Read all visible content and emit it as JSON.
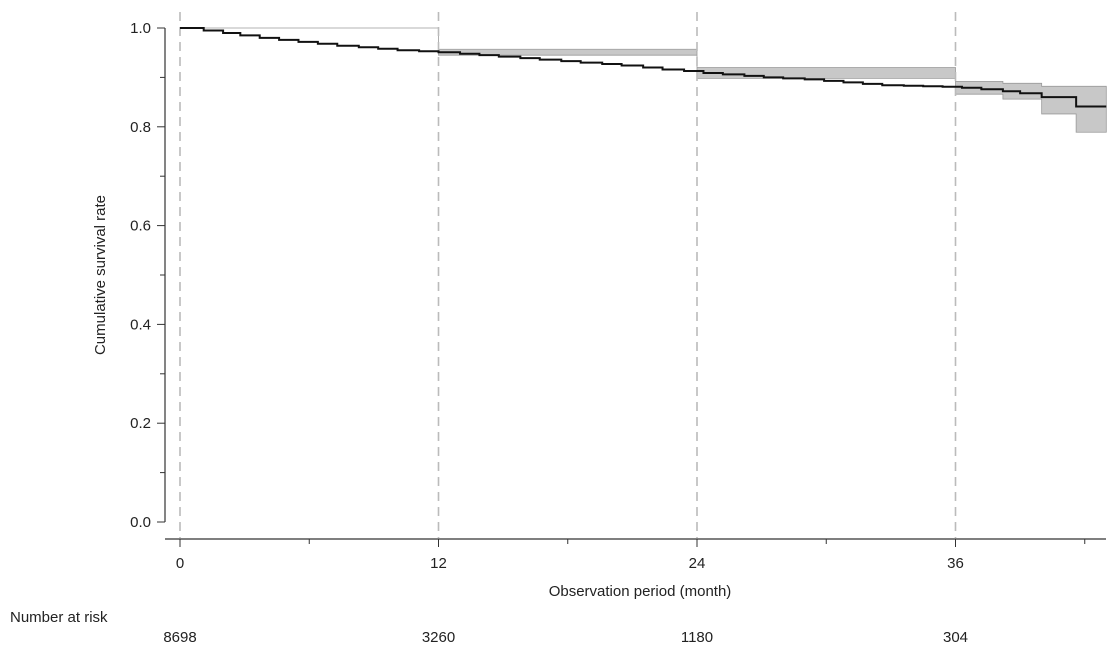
{
  "chart_data": {
    "type": "line",
    "subtype": "kaplan-meier survival curve with confidence band",
    "title": "",
    "xlabel": "Observation period (month)",
    "ylabel": "Cumulative survival rate",
    "xlim": [
      0,
      43
    ],
    "ylim": [
      0,
      1.0
    ],
    "xticks": [
      0,
      12,
      24,
      36
    ],
    "xtick_labels": [
      "0",
      "12",
      "24",
      "36"
    ],
    "yticks": [
      0.0,
      0.2,
      0.4,
      0.6,
      0.8,
      1.0
    ],
    "ytick_labels": [
      "0.0",
      "0.2",
      "0.4",
      "0.6",
      "0.8",
      "1.0"
    ],
    "reference_lines_x": [
      0,
      12,
      24,
      36
    ],
    "grid": false,
    "colors": {
      "line": "#111111",
      "band": "#c8c8c8",
      "reference": "#bbbbbb",
      "axis": "#333333"
    },
    "series": [
      {
        "steps": [
          [
            0,
            1.0
          ],
          [
            1.1,
            0.995
          ],
          [
            2.0,
            0.99
          ],
          [
            2.8,
            0.985
          ],
          [
            3.7,
            0.98
          ],
          [
            4.6,
            0.976
          ],
          [
            5.5,
            0.972
          ],
          [
            6.4,
            0.968
          ],
          [
            7.3,
            0.964
          ],
          [
            8.3,
            0.961
          ],
          [
            9.2,
            0.958
          ],
          [
            10.1,
            0.955
          ],
          [
            11.1,
            0.953
          ],
          [
            12.0,
            0.951
          ],
          [
            13.0,
            0.948
          ],
          [
            13.9,
            0.945
          ],
          [
            14.8,
            0.942
          ],
          [
            15.8,
            0.939
          ],
          [
            16.7,
            0.936
          ],
          [
            17.7,
            0.933
          ],
          [
            18.6,
            0.93
          ],
          [
            19.6,
            0.927
          ],
          [
            20.5,
            0.924
          ],
          [
            21.5,
            0.92
          ],
          [
            22.4,
            0.916
          ],
          [
            23.4,
            0.913
          ],
          [
            24.3,
            0.909
          ],
          [
            25.2,
            0.906
          ],
          [
            26.2,
            0.903
          ],
          [
            27.1,
            0.9
          ],
          [
            28.0,
            0.898
          ],
          [
            29.0,
            0.896
          ],
          [
            29.9,
            0.893
          ],
          [
            30.8,
            0.89
          ],
          [
            31.7,
            0.887
          ],
          [
            32.6,
            0.884
          ],
          [
            33.6,
            0.883
          ],
          [
            34.5,
            0.882
          ],
          [
            35.4,
            0.881
          ],
          [
            36.3,
            0.879
          ],
          [
            37.2,
            0.876
          ],
          [
            38.2,
            0.872
          ],
          [
            39.0,
            0.868
          ],
          [
            40.0,
            0.86
          ],
          [
            41.6,
            0.841
          ],
          [
            43.0,
            0.841
          ]
        ],
        "ci_lower": [
          [
            0,
            1.0
          ],
          [
            12.0,
            0.945
          ],
          [
            24.0,
            0.898
          ],
          [
            36.0,
            0.866
          ],
          [
            38.2,
            0.856
          ],
          [
            40.0,
            0.826
          ],
          [
            41.6,
            0.789
          ],
          [
            43.0,
            0.789
          ]
        ],
        "ci_upper": [
          [
            0,
            1.0
          ],
          [
            12.0,
            0.957
          ],
          [
            24.0,
            0.92
          ],
          [
            36.0,
            0.892
          ],
          [
            38.2,
            0.888
          ],
          [
            40.0,
            0.882
          ],
          [
            43.0,
            0.882
          ]
        ]
      }
    ],
    "risk_table": {
      "label": "Number at risk",
      "times": [
        0,
        12,
        24,
        36
      ],
      "values": [
        "8698",
        "3260",
        "1180",
        "304"
      ]
    }
  }
}
